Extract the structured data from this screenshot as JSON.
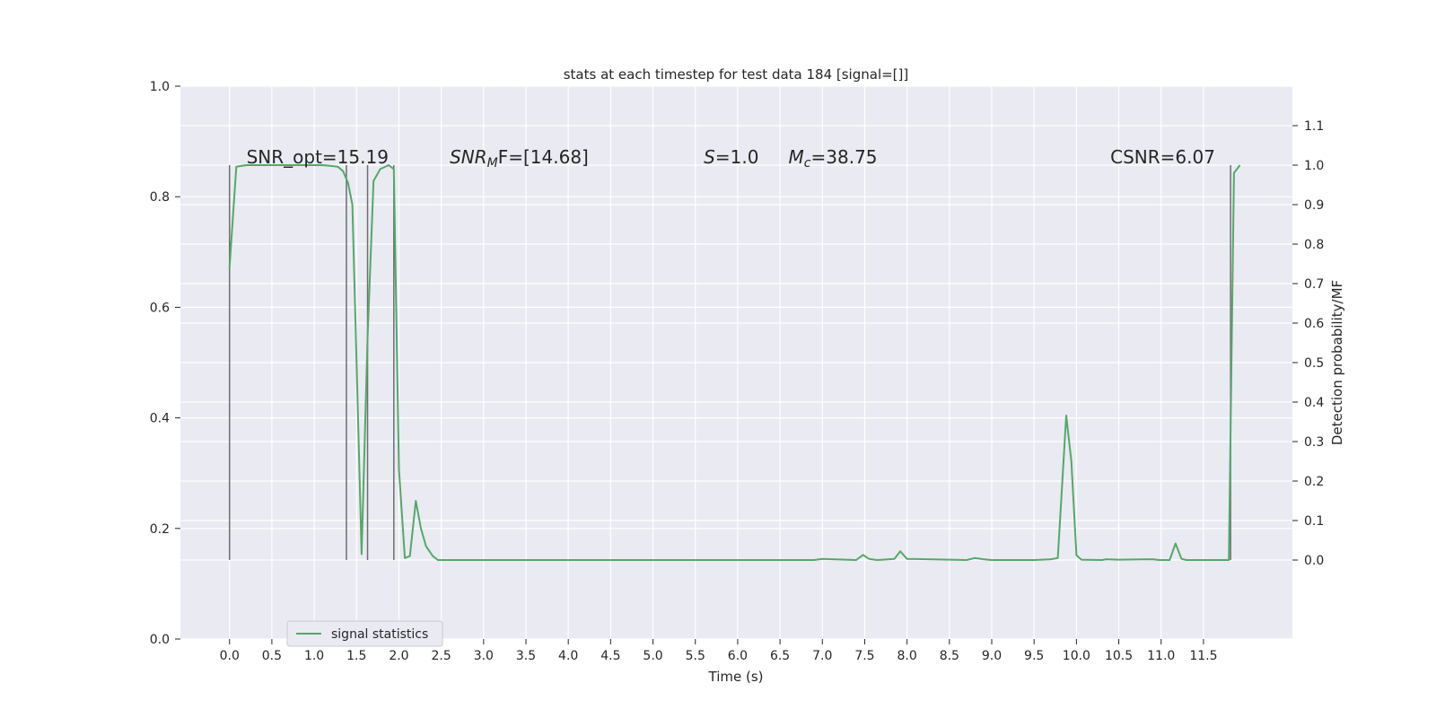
{
  "chart_data": {
    "type": "line",
    "title": "stats at each timestep for test data 184 [signal=[]]",
    "xlabel": "Time (s)",
    "ylabel_left": "",
    "ylabel_right": "Detection probability/MF",
    "xlim": [
      -0.58,
      12.55
    ],
    "ylim_left": [
      0,
      1
    ],
    "ylim_right": [
      -0.2,
      1.2
    ],
    "x_ticks": [
      "0.0",
      "0.5",
      "1.0",
      "1.5",
      "2.0",
      "2.5",
      "3.0",
      "3.5",
      "4.0",
      "4.5",
      "5.0",
      "5.5",
      "6.0",
      "6.5",
      "7.0",
      "7.5",
      "8.0",
      "8.5",
      "9.0",
      "9.5",
      "10.0",
      "10.5",
      "11.0",
      "11.5"
    ],
    "y_left_ticks": [
      "0.0",
      "0.2",
      "0.4",
      "0.6",
      "0.8",
      "1.0"
    ],
    "y_right_ticks": [
      "0.0",
      "0.1",
      "0.2",
      "0.3",
      "0.4",
      "0.5",
      "0.6",
      "0.7",
      "0.8",
      "0.9",
      "1.0",
      "1.1"
    ],
    "grid": true,
    "legend_placement": "lower-left",
    "colors": {
      "background": "#eaeaf2",
      "grid": "#ffffff",
      "series": "#55a868",
      "vlines": "#6e6e6e"
    },
    "annotations": [
      {
        "text": "SNR_opt=15.19",
        "x": 0.2,
        "y": 1.0,
        "italic_prefix": false
      },
      {
        "text": "SNR",
        "sub": "M",
        "rest": "F=[14.68]",
        "x": 2.6,
        "y": 1.0,
        "italic_prefix": true
      },
      {
        "text": "S",
        "rest": "=1.0",
        "x": 5.6,
        "y": 1.0,
        "italic_prefix": true
      },
      {
        "text": "M",
        "sub": "c",
        "rest": "=38.75",
        "x": 6.6,
        "y": 1.0,
        "italic_prefix": true
      },
      {
        "text": "CSNR=6.07",
        "x": 10.4,
        "y": 1.0,
        "italic_prefix": false
      }
    ],
    "vlines": [
      0.0,
      1.38,
      1.63,
      1.94,
      11.82
    ],
    "vline_ymin": 0.0,
    "vline_ymax": 1.0,
    "series": [
      {
        "name": "signal statistics",
        "x": [
          0.0,
          0.08,
          0.2,
          0.4,
          0.6,
          0.8,
          1.0,
          1.1,
          1.2,
          1.28,
          1.34,
          1.4,
          1.45,
          1.5,
          1.56,
          1.63,
          1.7,
          1.78,
          1.88,
          1.94,
          2.0,
          2.07,
          2.13,
          2.2,
          2.26,
          2.32,
          2.4,
          2.46,
          3.0,
          4.0,
          5.0,
          6.0,
          6.8,
          6.9,
          7.0,
          7.4,
          7.48,
          7.55,
          7.65,
          7.85,
          7.92,
          8.0,
          8.7,
          8.8,
          8.9,
          9.0,
          9.5,
          9.7,
          9.78,
          9.88,
          9.94,
          10.0,
          10.06,
          10.3,
          10.35,
          10.5,
          10.9,
          10.98,
          11.1,
          11.17,
          11.24,
          11.3,
          11.8,
          11.86,
          11.93
        ],
        "values": [
          0.74,
          0.996,
          1.0,
          1.0,
          1.0,
          1.0,
          1.0,
          1.0,
          0.998,
          0.996,
          0.985,
          0.955,
          0.9,
          0.5,
          0.015,
          0.56,
          0.96,
          0.99,
          1.0,
          0.99,
          0.23,
          0.005,
          0.01,
          0.15,
          0.08,
          0.035,
          0.01,
          0.0,
          0.0,
          0.0,
          0.0,
          0.0,
          0.0,
          0.0,
          0.003,
          0.0,
          0.013,
          0.003,
          0.0,
          0.003,
          0.022,
          0.003,
          0.0,
          0.005,
          0.002,
          0.0,
          0.0,
          0.002,
          0.005,
          0.366,
          0.25,
          0.012,
          0.001,
          0.0,
          0.002,
          0.001,
          0.002,
          0.0,
          0.0,
          0.042,
          0.003,
          0.0,
          0.0,
          0.98,
          1.0
        ]
      }
    ]
  }
}
